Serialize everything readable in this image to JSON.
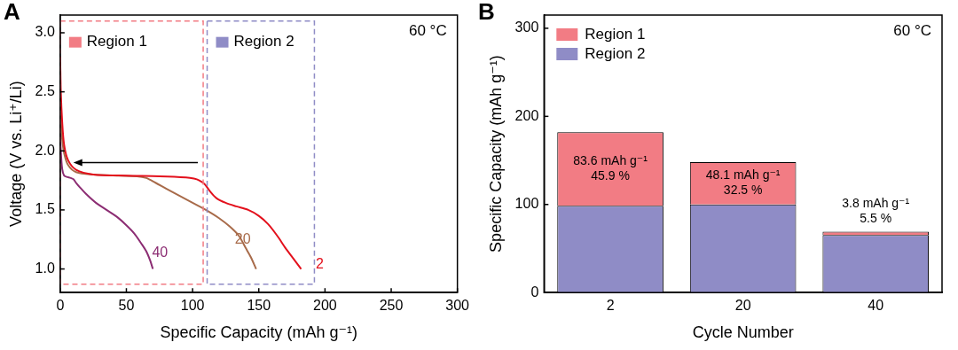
{
  "chart_data": [
    {
      "type": "line",
      "panel": "A",
      "annotation": "60 °C",
      "x_label": "Specific Capacity (mAh g⁻¹)",
      "y_label": "Voltage (V vs. Li⁺/Li)",
      "xlim": [
        0,
        300
      ],
      "xticks": [
        0,
        50,
        100,
        150,
        200,
        250,
        300
      ],
      "ylim": [
        0.8,
        3.15
      ],
      "yticks": [
        {
          "value": 1,
          "label": "1.0"
        },
        {
          "value": 1.5,
          "label": "1.5"
        },
        {
          "value": 2,
          "label": "2.0"
        },
        {
          "value": 2.5,
          "label": "2.5"
        },
        {
          "value": 3,
          "label": "3.0"
        }
      ],
      "grid": false,
      "regions": [
        {
          "name": "Region 1",
          "color": "#f27c84",
          "x": [
            0,
            108
          ],
          "y": [
            0.87,
            3.1
          ]
        },
        {
          "name": "Region 2",
          "color": "#8f8cc6",
          "x": [
            111,
            192
          ],
          "y": [
            0.87,
            3.1
          ]
        }
      ],
      "arrow": {
        "x": [
          104,
          10
        ],
        "y": 1.9
      },
      "series": [
        {
          "name": "2",
          "color": "#e3101c",
          "x": [
            0,
            0.5,
            1.5,
            3,
            6,
            12,
            25,
            50,
            75,
            95,
            101,
            105,
            109,
            113,
            118,
            125,
            133,
            142,
            150,
            157,
            164,
            170,
            176,
            182
          ],
          "values": [
            2.8,
            2.5,
            2.25,
            2.05,
            1.92,
            1.84,
            1.8,
            1.79,
            1.785,
            1.775,
            1.765,
            1.75,
            1.72,
            1.66,
            1.6,
            1.56,
            1.53,
            1.5,
            1.45,
            1.38,
            1.28,
            1.18,
            1.09,
            1.0
          ]
        },
        {
          "name": "20",
          "color": "#a86b4a",
          "x": [
            0,
            0.5,
            1.5,
            3,
            6,
            12,
            25,
            45,
            58,
            65,
            72,
            80,
            90,
            100,
            110,
            120,
            128,
            135,
            140,
            144,
            148
          ],
          "values": [
            2.45,
            2.25,
            2.1,
            1.98,
            1.88,
            1.82,
            1.8,
            1.79,
            1.785,
            1.77,
            1.73,
            1.68,
            1.62,
            1.56,
            1.5,
            1.43,
            1.36,
            1.28,
            1.18,
            1.1,
            1.0
          ]
        },
        {
          "name": "40",
          "color": "#8c2d73",
          "x": [
            0,
            0.5,
            1.5,
            3,
            5,
            8,
            10,
            12,
            15,
            20,
            27,
            35,
            43,
            50,
            56,
            61,
            65,
            68,
            70
          ],
          "values": [
            2.15,
            2.0,
            1.85,
            1.79,
            1.78,
            1.77,
            1.76,
            1.73,
            1.69,
            1.63,
            1.56,
            1.5,
            1.44,
            1.37,
            1.3,
            1.22,
            1.15,
            1.07,
            1.0
          ]
        }
      ]
    },
    {
      "type": "bar",
      "panel": "B",
      "annotation": "60 °C",
      "stacked": true,
      "legend": "upper left",
      "x_label": "Cycle Number",
      "y_label": "Specific Capacity (mAh g⁻¹)",
      "categories": [
        "2",
        "20",
        "40"
      ],
      "ylim": [
        0,
        315
      ],
      "yticks": [
        0,
        100,
        200,
        300
      ],
      "grid": false,
      "series": [
        {
          "name": "Region 1",
          "color": "#f27c84",
          "values": [
            83.6,
            48.1,
            3.8
          ],
          "data_labels": true,
          "value_labels": [
            "83.6 mAh g⁻¹",
            "48.1 mAh g⁻¹",
            "3.8 mAh g⁻¹"
          ],
          "shares": [
            45.9,
            32.5,
            5.5
          ],
          "share_labels": [
            "45.9 %",
            "32.5 %",
            "5.5 %"
          ]
        },
        {
          "name": "Region 2",
          "color": "#8f8cc6",
          "values": [
            98.5,
            99.9,
            65.3
          ]
        }
      ]
    }
  ]
}
